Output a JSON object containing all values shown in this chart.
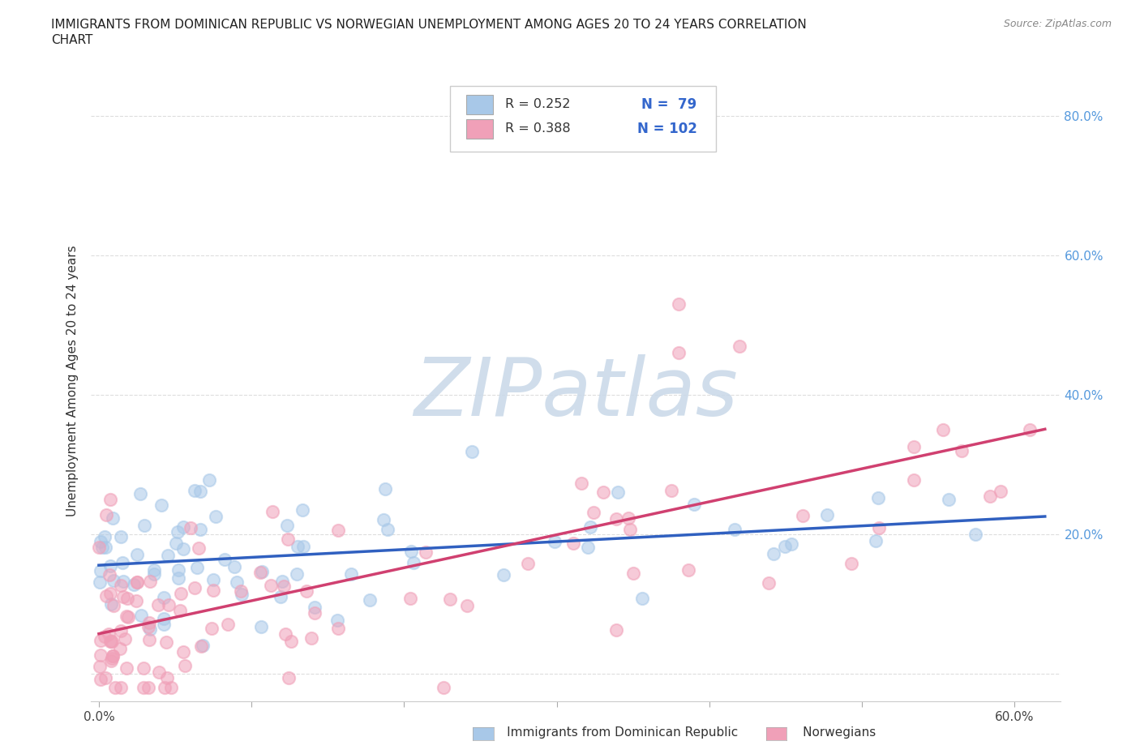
{
  "title_line1": "IMMIGRANTS FROM DOMINICAN REPUBLIC VS NORWEGIAN UNEMPLOYMENT AMONG AGES 20 TO 24 YEARS CORRELATION",
  "title_line2": "CHART",
  "source_text": "Source: ZipAtlas.com",
  "ylabel": "Unemployment Among Ages 20 to 24 years",
  "xlim": [
    -0.005,
    0.63
  ],
  "ylim": [
    -0.04,
    0.88
  ],
  "blue_color": "#A8C8E8",
  "pink_color": "#F0A0B8",
  "blue_line_color": "#3060C0",
  "pink_line_color": "#D04070",
  "watermark_color": "#C8D8E8",
  "watermark_text": "ZIPatlas",
  "legend_r1": "R = 0.252",
  "legend_n1": "N =  79",
  "legend_r2": "R = 0.388",
  "legend_n2": "N = 102",
  "n_blue": 79,
  "n_pink": 102,
  "blue_intercept": 0.145,
  "blue_slope": 0.12,
  "pink_intercept": 0.06,
  "pink_slope": 0.38,
  "grid_color": "#DDDDDD",
  "spine_color": "#CCCCCC",
  "right_tick_color": "#5599DD"
}
